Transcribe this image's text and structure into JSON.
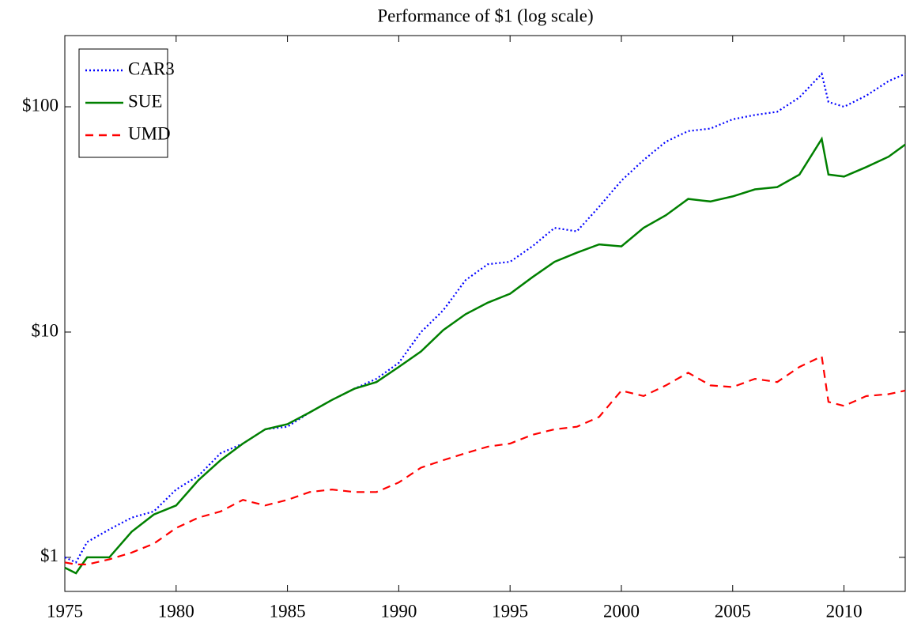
{
  "chart_data": {
    "type": "line",
    "title": "Performance of $1 (log scale)",
    "yscale": "log",
    "x": [
      1975,
      1975.5,
      1976,
      1977,
      1978,
      1979,
      1980,
      1981,
      1982,
      1983,
      1984,
      1985,
      1986,
      1987,
      1988,
      1989,
      1990,
      1991,
      1992,
      1993,
      1994,
      1995,
      1996,
      1997,
      1998,
      1999,
      2000,
      2001,
      2002,
      2003,
      2004,
      2005,
      2006,
      2007,
      2008,
      2009,
      2009.3,
      2010,
      2011,
      2012,
      2012.75
    ],
    "series": [
      {
        "name": "CAR3",
        "color": "#0000ff",
        "style": "dotted",
        "values": [
          1.0,
          0.95,
          1.17,
          1.33,
          1.5,
          1.6,
          2.0,
          2.3,
          2.9,
          3.2,
          3.7,
          3.8,
          4.4,
          5.0,
          5.6,
          6.2,
          7.3,
          10,
          12.5,
          17,
          20,
          20.5,
          24,
          29,
          28,
          36,
          47,
          58,
          70,
          78,
          80,
          88,
          92,
          95,
          110,
          140,
          105,
          100,
          112,
          130,
          140
        ]
      },
      {
        "name": "SUE",
        "color": "#008000",
        "style": "solid",
        "values": [
          0.9,
          0.85,
          1.0,
          1.0,
          1.3,
          1.55,
          1.7,
          2.2,
          2.7,
          3.2,
          3.7,
          3.9,
          4.4,
          5.0,
          5.6,
          6.0,
          7.0,
          8.2,
          10.2,
          12.0,
          13.5,
          14.8,
          17.5,
          20.5,
          22.5,
          24.5,
          24,
          29,
          33,
          39,
          38,
          40,
          43,
          44,
          50,
          72,
          50,
          49,
          54,
          60,
          68
        ]
      },
      {
        "name": "UMD",
        "color": "#ff0000",
        "style": "dashed",
        "values": [
          0.95,
          0.93,
          0.93,
          0.98,
          1.05,
          1.15,
          1.35,
          1.5,
          1.6,
          1.8,
          1.7,
          1.8,
          1.95,
          2.0,
          1.95,
          1.95,
          2.15,
          2.5,
          2.7,
          2.9,
          3.1,
          3.2,
          3.5,
          3.7,
          3.8,
          4.2,
          5.5,
          5.2,
          5.8,
          6.6,
          5.8,
          5.7,
          6.2,
          6.0,
          7.0,
          7.8,
          4.9,
          4.7,
          5.2,
          5.3,
          5.5
        ]
      }
    ],
    "xlim": [
      1975,
      2012.75
    ],
    "xticks": [
      1975,
      1980,
      1985,
      1990,
      1995,
      2000,
      2005,
      2010
    ],
    "ylim": [
      0.706,
      207
    ],
    "yticks": [
      {
        "value": 1,
        "label": "$1"
      },
      {
        "value": 10,
        "label": "$10"
      },
      {
        "value": 100,
        "label": "$100"
      }
    ],
    "legend": "upper left"
  }
}
